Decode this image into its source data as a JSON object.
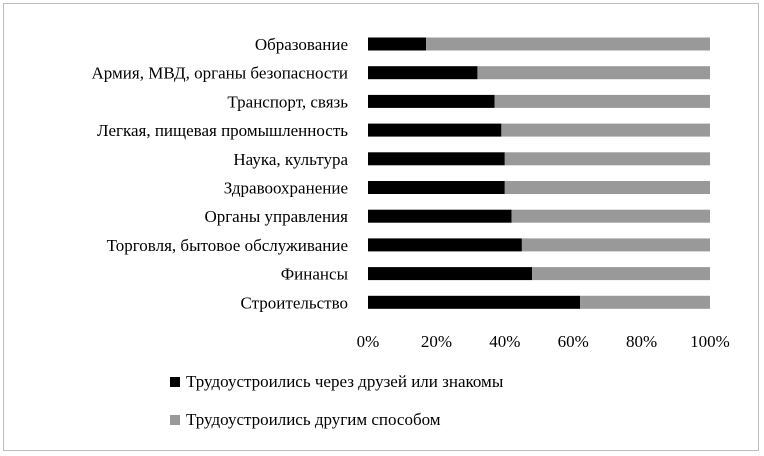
{
  "chart_data": {
    "type": "bar",
    "orientation": "horizontal",
    "stacked": "percent",
    "categories": [
      "Образование",
      "Армия, МВД, органы безопасности",
      "Транспорт, связь",
      "Легкая, пищевая промышленность",
      "Наука, культура",
      "Здравоохранение",
      "Органы управления",
      "Торговля, бытовое обслуживание",
      "Финансы",
      "Строительство"
    ],
    "series": [
      {
        "name": "Трудоустроились через друзей или знакомы",
        "color": "#000000",
        "values": [
          17,
          32,
          37,
          39,
          40,
          40,
          42,
          45,
          48,
          62
        ]
      },
      {
        "name": "Трудоустроились другим способом",
        "color": "#999999",
        "values": [
          83,
          68,
          63,
          61,
          60,
          60,
          58,
          55,
          52,
          38
        ]
      }
    ],
    "x_ticks": [
      "0%",
      "20%",
      "40%",
      "60%",
      "80%",
      "100%"
    ],
    "xlim": [
      0,
      100
    ],
    "title": "",
    "xlabel": "",
    "ylabel": "",
    "grid": false,
    "legend": "bottom"
  }
}
